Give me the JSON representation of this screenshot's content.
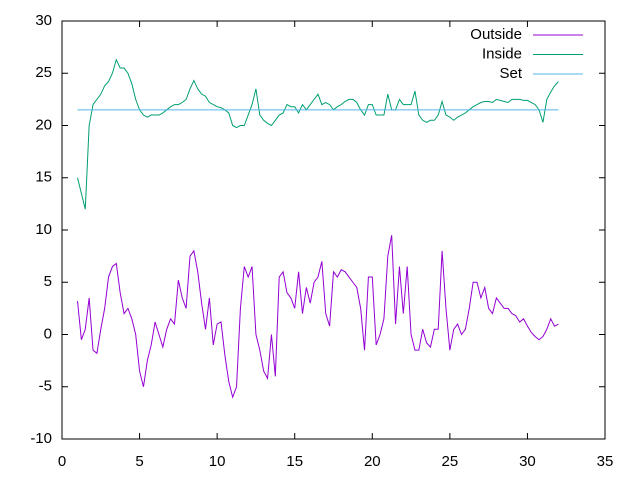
{
  "chart_data": {
    "type": "line",
    "xlim": [
      0,
      35
    ],
    "xticks": [
      0,
      5,
      10,
      15,
      20,
      25,
      30,
      35
    ],
    "ylim": [
      -10,
      30
    ],
    "yticks": [
      -10,
      -5,
      0,
      5,
      10,
      15,
      20,
      25,
      30
    ],
    "grid": false,
    "legend": "top-right",
    "x": [
      1,
      1.25,
      1.5,
      1.75,
      2,
      2.25,
      2.5,
      2.75,
      3,
      3.25,
      3.5,
      3.75,
      4,
      4.25,
      4.5,
      4.75,
      5,
      5.25,
      5.5,
      5.75,
      6,
      6.25,
      6.5,
      6.75,
      7,
      7.25,
      7.5,
      7.75,
      8,
      8.25,
      8.5,
      8.75,
      9,
      9.25,
      9.5,
      9.75,
      10,
      10.25,
      10.5,
      10.75,
      11,
      11.25,
      11.5,
      11.75,
      12,
      12.25,
      12.5,
      12.75,
      13,
      13.25,
      13.5,
      13.75,
      14,
      14.25,
      14.5,
      14.75,
      15,
      15.25,
      15.5,
      15.75,
      16,
      16.25,
      16.5,
      16.75,
      17,
      17.25,
      17.5,
      17.75,
      18,
      18.25,
      18.5,
      18.75,
      19,
      19.25,
      19.5,
      19.75,
      20,
      20.25,
      20.5,
      20.75,
      21,
      21.25,
      21.5,
      21.75,
      22,
      22.25,
      22.5,
      22.75,
      23,
      23.25,
      23.5,
      23.75,
      24,
      24.25,
      24.5,
      24.75,
      25,
      25.25,
      25.5,
      25.75,
      26,
      26.25,
      26.5,
      26.75,
      27,
      27.25,
      27.5,
      27.75,
      28,
      28.25,
      28.5,
      28.75,
      29,
      29.25,
      29.5,
      29.75,
      30,
      30.25,
      30.5,
      30.75,
      31,
      31.25,
      31.5,
      31.75,
      32
    ],
    "series": [
      {
        "name": "Outside",
        "color": "#9400d3",
        "values": [
          3.2,
          -0.5,
          0.5,
          3.5,
          -1.5,
          -1.8,
          0.5,
          2.5,
          5.5,
          6.5,
          6.8,
          4,
          2,
          2.5,
          1.5,
          0,
          -3.5,
          -5,
          -2.5,
          -1,
          1.2,
          0,
          -1.2,
          0.5,
          1.5,
          1,
          5.2,
          3.5,
          2.5,
          7.5,
          8,
          6,
          3,
          0.5,
          3.5,
          -1,
          1,
          1.2,
          -2,
          -4.5,
          -6,
          -5,
          2.5,
          6.5,
          5.5,
          6.5,
          0,
          -1.5,
          -3.5,
          -4.2,
          0,
          -4,
          5.5,
          6,
          4,
          3.5,
          2.5,
          6,
          2,
          4.5,
          3,
          5,
          5.5,
          7,
          2,
          0.8,
          6,
          5.5,
          6.2,
          6,
          5.5,
          5,
          4.5,
          2.5,
          -1.5,
          5.5,
          5.5,
          -1,
          0,
          1.5,
          7.5,
          9.5,
          1,
          6.5,
          2,
          6.5,
          0,
          -1.5,
          -1.5,
          0.5,
          -0.8,
          -1.2,
          0.5,
          0.5,
          8,
          2.5,
          -1.5,
          0.5,
          1,
          0,
          0.5,
          2.5,
          5,
          5,
          3.5,
          4.5,
          2.5,
          2,
          3.5,
          3,
          2.5,
          2.5,
          2,
          1.8,
          1.2,
          1.5,
          0.8,
          0.2,
          -0.2,
          -0.5,
          -0.2,
          0.5,
          1.5,
          0.8,
          1
        ]
      },
      {
        "name": "Inside",
        "color": "#009e73",
        "values": [
          15,
          13.5,
          12,
          20,
          22,
          22.5,
          23,
          23.8,
          24.2,
          25,
          26.3,
          25.5,
          25.5,
          25,
          24,
          22.5,
          21.5,
          21,
          20.8,
          21,
          21,
          21,
          21.2,
          21.5,
          21.8,
          22,
          22,
          22.2,
          22.5,
          23.5,
          24.3,
          23.5,
          23,
          22.8,
          22.2,
          22,
          21.8,
          21.7,
          21.5,
          21.2,
          20,
          19.8,
          20,
          20,
          21,
          22,
          23.5,
          21,
          20.5,
          20.2,
          20,
          20.5,
          21,
          21.2,
          22,
          21.8,
          21.8,
          21.2,
          22,
          21.5,
          22,
          22.5,
          23,
          22,
          22.2,
          22,
          21.5,
          21.8,
          22,
          22.3,
          22.5,
          22.5,
          22.2,
          21.5,
          21,
          22,
          22,
          21,
          21,
          21,
          23,
          21.5,
          21.5,
          22.5,
          22,
          22,
          22,
          23.3,
          21,
          20.5,
          20.3,
          20.5,
          20.5,
          21,
          22.3,
          21,
          20.8,
          20.5,
          20.8,
          21,
          21.2,
          21.5,
          21.8,
          22,
          22.2,
          22.3,
          22.3,
          22.2,
          22.5,
          22.4,
          22.3,
          22.2,
          22.5,
          22.5,
          22.5,
          22.4,
          22.4,
          22.2,
          22,
          21.5,
          20.3,
          22.5,
          23.2,
          23.8,
          24.2
        ]
      },
      {
        "name": "Set",
        "color": "#56b4e9",
        "x": [
          1,
          32
        ],
        "values": [
          21.5,
          21.5
        ]
      }
    ]
  }
}
